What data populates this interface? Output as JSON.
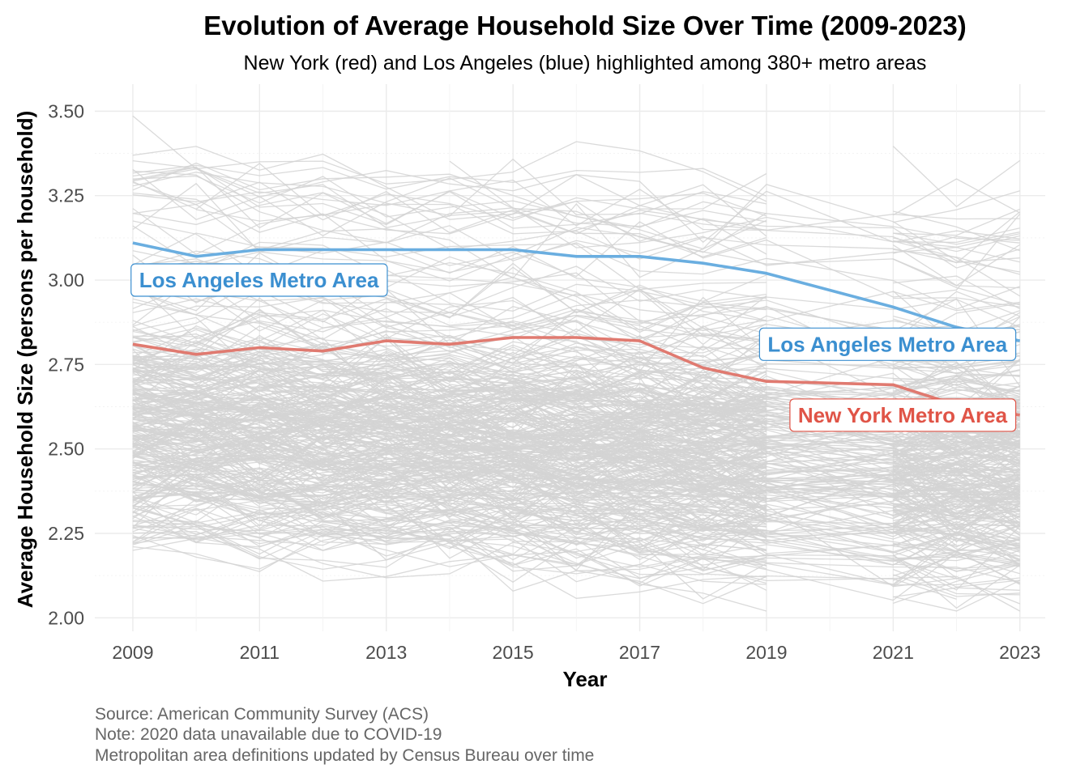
{
  "chart_data": {
    "type": "line",
    "title": "Evolution of Average Household Size Over Time (2009-2023)",
    "subtitle": "New York (red) and Los Angeles (blue) highlighted among 380+ metro areas",
    "xlabel": "Year",
    "ylabel": "Average Household Size (persons per household)",
    "xlim": [
      2008.4,
      2023.4
    ],
    "ylim": [
      1.96,
      3.58
    ],
    "x_ticks": [
      2009,
      2011,
      2013,
      2015,
      2017,
      2019,
      2021,
      2023
    ],
    "x_tick_labels": [
      "2009",
      "2011",
      "2013",
      "2015",
      "2017",
      "2019",
      "2021",
      "2023"
    ],
    "y_ticks": [
      2.0,
      2.25,
      2.5,
      2.75,
      3.0,
      3.25,
      3.5
    ],
    "y_tick_labels": [
      "2.00",
      "2.25",
      "2.50",
      "2.75",
      "3.00",
      "3.25",
      "3.50"
    ],
    "grid": true,
    "years": [
      2009,
      2010,
      2011,
      2012,
      2013,
      2014,
      2015,
      2016,
      2017,
      2018,
      2019,
      2021,
      2022,
      2023
    ],
    "background_series": {
      "count": 380,
      "color": "#d3d3d3",
      "value_range": [
        2.02,
        3.49
      ]
    },
    "series": [
      {
        "name": "Los Angeles Metro Area",
        "color": "#6aaee0",
        "points": [
          [
            2009,
            3.11
          ],
          [
            2010,
            3.07
          ],
          [
            2011,
            3.09
          ],
          [
            2012,
            3.09
          ],
          [
            2013,
            3.09
          ],
          [
            2014,
            3.09
          ],
          [
            2015,
            3.09
          ],
          [
            2016,
            3.07
          ],
          [
            2017,
            3.07
          ],
          [
            2018,
            3.05
          ],
          [
            2019,
            3.02
          ],
          [
            2021,
            2.92
          ],
          [
            2022,
            2.86
          ],
          [
            2023,
            2.82
          ]
        ]
      },
      {
        "name": "New York Metro Area",
        "color": "#e07a70",
        "points": [
          [
            2009,
            2.81
          ],
          [
            2010,
            2.78
          ],
          [
            2011,
            2.8
          ],
          [
            2012,
            2.79
          ],
          [
            2013,
            2.82
          ],
          [
            2014,
            2.81
          ],
          [
            2015,
            2.83
          ],
          [
            2016,
            2.83
          ],
          [
            2017,
            2.82
          ],
          [
            2018,
            2.74
          ],
          [
            2019,
            2.7
          ],
          [
            2021,
            2.69
          ],
          [
            2022,
            2.63
          ],
          [
            2023,
            2.6
          ]
        ]
      }
    ],
    "annotations": [
      {
        "text": "Los Angeles Metro Area",
        "x": 2009.1,
        "y": 3.0,
        "anchor": "start",
        "color": "#3b8fd0"
      },
      {
        "text": "Los Angeles Metro Area",
        "x": 2022.8,
        "y": 2.81,
        "anchor": "end",
        "color": "#3b8fd0"
      },
      {
        "text": "New York Metro Area",
        "x": 2022.8,
        "y": 2.6,
        "anchor": "end",
        "color": "#e05447"
      }
    ],
    "caption": [
      "Source: American Community Survey (ACS)",
      "Note: 2020 data unavailable due to COVID-19",
      "Metropolitan area definitions updated by Census Bureau over time"
    ]
  }
}
